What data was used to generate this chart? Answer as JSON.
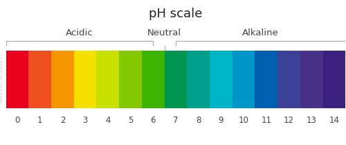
{
  "title": "pH scale",
  "title_fontsize": 13,
  "labels": [
    "0",
    "1",
    "2",
    "3",
    "4",
    "5",
    "6",
    "7",
    "8",
    "9",
    "10",
    "11",
    "12",
    "13",
    "14"
  ],
  "ph_colors": [
    "#e8001d",
    "#f05020",
    "#f59600",
    "#f5e000",
    "#c8e000",
    "#84c800",
    "#3cb400",
    "#009650",
    "#00a08c",
    "#00b4c8",
    "#0096c8",
    "#0060b0",
    "#3c4096",
    "#483288",
    "#3b2080"
  ],
  "section_labels": [
    "Acidic",
    "Neutral",
    "Alkaline"
  ],
  "bg_color": "#ffffff",
  "bar_label_fontsize": 8.5,
  "section_label_fontsize": 9.5,
  "bracket_color": "#aaaaaa",
  "label_color": "#444444",
  "watermark_text": "Adobe Stock | #578502472"
}
